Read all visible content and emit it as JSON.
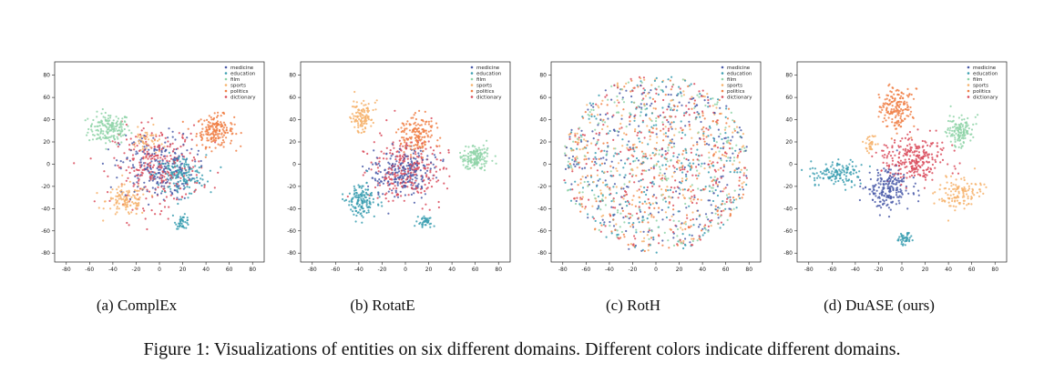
{
  "domains": [
    "medicine",
    "education",
    "film",
    "sports",
    "politics",
    "dictionary"
  ],
  "colors": {
    "medicine": "#4a5aa8",
    "education": "#3a9db0",
    "film": "#8fd3a8",
    "sports": "#f6b26b",
    "politics": "#f07f45",
    "dictionary": "#d94a5a"
  },
  "figure_caption": "Figure 1: Visualizations of entities on six different domains. Different colors indicate different domains.",
  "chart_data": [
    {
      "type": "scatter",
      "caption": "(a) ComplEx",
      "xlim": [
        -90,
        90
      ],
      "ylim": [
        -88,
        92
      ],
      "xticks": [
        -80,
        -60,
        -40,
        -20,
        0,
        20,
        40,
        60,
        80
      ],
      "yticks": [
        -80,
        -60,
        -40,
        -20,
        0,
        20,
        40,
        60,
        80
      ],
      "legend": "top-right",
      "clusters": [
        {
          "domain": "film",
          "cx": -43,
          "cy": 32,
          "sx": 9,
          "sy": 7,
          "n": 170
        },
        {
          "domain": "politics",
          "cx": 48,
          "cy": 30,
          "sx": 8,
          "sy": 7,
          "n": 180
        },
        {
          "domain": "sports",
          "cx": -28,
          "cy": -33,
          "sx": 9,
          "sy": 7,
          "n": 120
        },
        {
          "domain": "education",
          "cx": 20,
          "cy": -52,
          "sx": 3,
          "sy": 3,
          "n": 40
        },
        {
          "domain": "education",
          "cx": 18,
          "cy": -10,
          "sx": 11,
          "sy": 9,
          "n": 170
        },
        {
          "domain": "medicine",
          "cx": -2,
          "cy": -3,
          "sx": 16,
          "sy": 15,
          "n": 220
        },
        {
          "domain": "dictionary",
          "cx": -2,
          "cy": -2,
          "sx": 19,
          "sy": 18,
          "n": 280
        },
        {
          "domain": "sports",
          "cx": -12,
          "cy": 20,
          "sx": 6,
          "sy": 6,
          "n": 50
        }
      ]
    },
    {
      "type": "scatter",
      "caption": "(b) RotatE",
      "xlim": [
        -90,
        90
      ],
      "ylim": [
        -88,
        92
      ],
      "xticks": [
        -80,
        -60,
        -40,
        -20,
        0,
        20,
        40,
        60,
        80
      ],
      "yticks": [
        -80,
        -60,
        -40,
        -20,
        0,
        20,
        40,
        60,
        80
      ],
      "legend": "top-right",
      "clusters": [
        {
          "domain": "sports",
          "cx": -37,
          "cy": 43,
          "sx": 5,
          "sy": 7,
          "n": 110
        },
        {
          "domain": "politics",
          "cx": 10,
          "cy": 27,
          "sx": 7,
          "sy": 8,
          "n": 150
        },
        {
          "domain": "film",
          "cx": 60,
          "cy": 6,
          "sx": 7,
          "sy": 6,
          "n": 150
        },
        {
          "domain": "education",
          "cx": -38,
          "cy": -33,
          "sx": 6,
          "sy": 7,
          "n": 140
        },
        {
          "domain": "education",
          "cx": 16,
          "cy": -52,
          "sx": 3,
          "sy": 3,
          "n": 40
        },
        {
          "domain": "medicine",
          "cx": 0,
          "cy": -7,
          "sx": 13,
          "sy": 11,
          "n": 230
        },
        {
          "domain": "dictionary",
          "cx": 0,
          "cy": -5,
          "sx": 16,
          "sy": 14,
          "n": 260
        }
      ]
    },
    {
      "type": "scatter",
      "caption": "(c) RotH",
      "xlim": [
        -90,
        90
      ],
      "ylim": [
        -88,
        92
      ],
      "xticks": [
        -80,
        -60,
        -40,
        -20,
        0,
        20,
        40,
        60,
        80
      ],
      "yticks": [
        -80,
        -60,
        -40,
        -20,
        0,
        20,
        40,
        60,
        80
      ],
      "legend": "top-right",
      "clusters": [
        {
          "domain": "medicine",
          "cx": 0,
          "cy": 0,
          "r": 80,
          "n": 260,
          "uniform": true
        },
        {
          "domain": "education",
          "cx": 0,
          "cy": 0,
          "r": 80,
          "n": 260,
          "uniform": true
        },
        {
          "domain": "film",
          "cx": 0,
          "cy": 0,
          "r": 80,
          "n": 220,
          "uniform": true
        },
        {
          "domain": "sports",
          "cx": 0,
          "cy": 0,
          "r": 80,
          "n": 220,
          "uniform": true
        },
        {
          "domain": "politics",
          "cx": 0,
          "cy": 0,
          "r": 80,
          "n": 220,
          "uniform": true
        },
        {
          "domain": "dictionary",
          "cx": 0,
          "cy": 0,
          "r": 80,
          "n": 260,
          "uniform": true
        }
      ]
    },
    {
      "type": "scatter",
      "caption": "(d) DuASE (ours)",
      "xlim": [
        -90,
        90
      ],
      "ylim": [
        -88,
        92
      ],
      "xticks": [
        -80,
        -60,
        -40,
        -20,
        0,
        20,
        40,
        60,
        80
      ],
      "yticks": [
        -80,
        -60,
        -40,
        -20,
        0,
        20,
        40,
        60,
        80
      ],
      "legend": "top-right",
      "clusters": [
        {
          "domain": "politics",
          "cx": -5,
          "cy": 50,
          "sx": 7,
          "sy": 9,
          "n": 170
        },
        {
          "domain": "film",
          "cx": 50,
          "cy": 30,
          "sx": 6,
          "sy": 7,
          "n": 130
        },
        {
          "domain": "dictionary",
          "cx": 10,
          "cy": 5,
          "sx": 14,
          "sy": 10,
          "n": 260
        },
        {
          "domain": "medicine",
          "cx": -12,
          "cy": -22,
          "sx": 9,
          "sy": 9,
          "n": 200
        },
        {
          "domain": "education",
          "cx": -55,
          "cy": -8,
          "sx": 11,
          "sy": 6,
          "n": 130
        },
        {
          "domain": "education",
          "cx": 3,
          "cy": -67,
          "sx": 3,
          "sy": 3,
          "n": 40
        },
        {
          "domain": "sports",
          "cx": 50,
          "cy": -27,
          "sx": 9,
          "sy": 7,
          "n": 120
        },
        {
          "domain": "sports",
          "cx": -28,
          "cy": 18,
          "sx": 4,
          "sy": 4,
          "n": 30
        }
      ]
    }
  ]
}
